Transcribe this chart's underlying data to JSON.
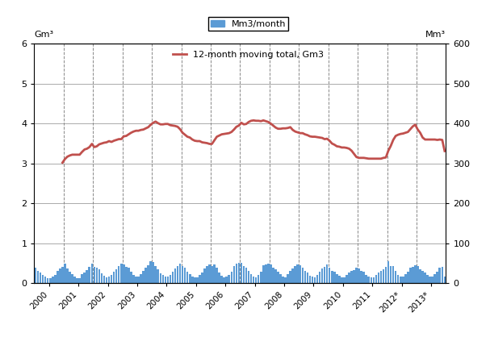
{
  "ylabel_left": "Gm³",
  "ylabel_right": "Mm³",
  "bar_color": "#5B9BD5",
  "line_color": "#C0504D",
  "bar_legend": "Mm3/month",
  "line_legend": "12-month moving total, Gm3",
  "ylim_left": [
    0,
    6
  ],
  "ylim_right": [
    0,
    600
  ],
  "yticks_left": [
    0,
    1,
    2,
    3,
    4,
    5,
    6
  ],
  "yticks_right": [
    0,
    100,
    200,
    300,
    400,
    500,
    600
  ],
  "monthly_data_gm3": [
    0.39,
    0.31,
    0.26,
    0.2,
    0.16,
    0.13,
    0.13,
    0.16,
    0.2,
    0.31,
    0.36,
    0.41,
    0.48,
    0.37,
    0.29,
    0.22,
    0.16,
    0.13,
    0.13,
    0.23,
    0.26,
    0.33,
    0.4,
    0.49,
    0.4,
    0.39,
    0.34,
    0.24,
    0.18,
    0.14,
    0.16,
    0.21,
    0.29,
    0.35,
    0.42,
    0.49,
    0.47,
    0.4,
    0.38,
    0.28,
    0.21,
    0.16,
    0.16,
    0.23,
    0.3,
    0.38,
    0.45,
    0.55,
    0.52,
    0.43,
    0.34,
    0.25,
    0.21,
    0.17,
    0.16,
    0.2,
    0.29,
    0.37,
    0.43,
    0.49,
    0.43,
    0.38,
    0.29,
    0.23,
    0.16,
    0.14,
    0.15,
    0.2,
    0.26,
    0.36,
    0.42,
    0.47,
    0.43,
    0.47,
    0.38,
    0.26,
    0.19,
    0.15,
    0.16,
    0.21,
    0.29,
    0.42,
    0.49,
    0.5,
    0.5,
    0.43,
    0.39,
    0.31,
    0.22,
    0.16,
    0.15,
    0.21,
    0.28,
    0.44,
    0.47,
    0.48,
    0.46,
    0.38,
    0.34,
    0.28,
    0.22,
    0.17,
    0.15,
    0.22,
    0.3,
    0.37,
    0.43,
    0.46,
    0.44,
    0.38,
    0.31,
    0.26,
    0.19,
    0.16,
    0.15,
    0.21,
    0.29,
    0.36,
    0.4,
    0.47,
    0.39,
    0.31,
    0.28,
    0.22,
    0.18,
    0.14,
    0.15,
    0.2,
    0.27,
    0.31,
    0.32,
    0.39,
    0.37,
    0.31,
    0.28,
    0.21,
    0.17,
    0.14,
    0.15,
    0.2,
    0.27,
    0.31,
    0.34,
    0.4,
    0.54,
    0.43,
    0.43,
    0.31,
    0.2,
    0.16,
    0.16,
    0.22,
    0.29,
    0.38,
    0.41,
    0.44,
    0.42,
    0.35,
    0.31,
    0.26,
    0.2,
    0.16,
    0.16,
    0.22,
    0.28,
    0.39,
    0.4,
    0.16
  ],
  "x_tick_labels": [
    "2000",
    "2001",
    "2002",
    "2003",
    "2004",
    "2005",
    "2006",
    "2007",
    "2008",
    "2009",
    "2010",
    "2011",
    "2012*",
    "2013*"
  ],
  "year_starts": [
    0,
    12,
    24,
    36,
    48,
    60,
    72,
    84,
    96,
    108,
    120,
    132,
    144,
    156
  ],
  "figsize": [
    6.07,
    4.18
  ],
  "dpi": 100
}
